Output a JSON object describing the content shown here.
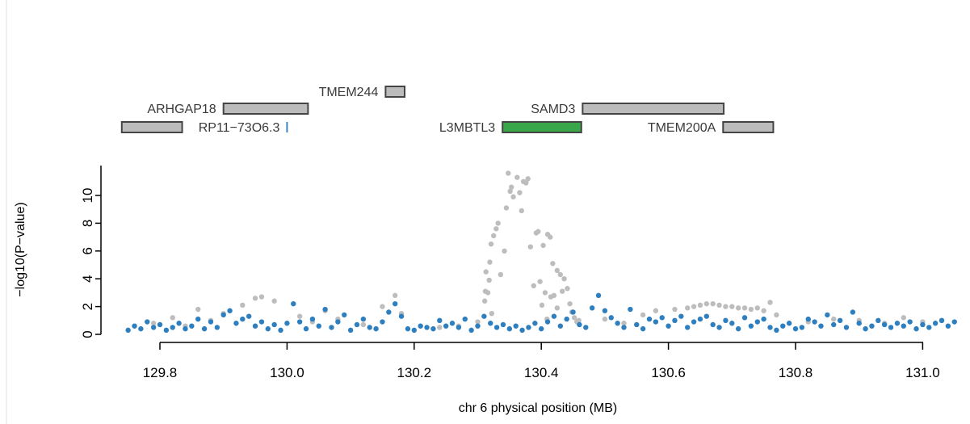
{
  "chart_data": {
    "type": "scatter",
    "title": "",
    "xlabel": "chr 6 physical position (MB)",
    "ylabel": "−log10(P−value)",
    "xlim": [
      129.74,
      131.06
    ],
    "ylim": [
      0,
      12
    ],
    "x_ticks": [
      "129.8",
      "130.0",
      "130.2",
      "130.4",
      "130.6",
      "130.8",
      "131.0"
    ],
    "y_ticks": [
      "0",
      "2",
      "4",
      "6",
      "8",
      "10"
    ],
    "colors": {
      "highlight": "#2e7fbf",
      "other": "#bdbdbd",
      "focus_gene": "#3aa64a",
      "focus_gene_text": "#2e9a43",
      "lnc_gene": "#3a86c4",
      "gene_fill": "#bcbcbc"
    },
    "genes": [
      {
        "name": "",
        "start": 129.74,
        "end": 129.835,
        "row": 2,
        "color": "gray"
      },
      {
        "name": "TMEM244",
        "start": 130.155,
        "end": 130.185,
        "row": 0,
        "color": "gray"
      },
      {
        "name": "ARHGAP18",
        "start": 129.9,
        "end": 130.033,
        "row": 1,
        "color": "gray"
      },
      {
        "name": "RP11−73O6.3",
        "start": 130.0,
        "end": 130.0,
        "row": 2,
        "color": "blue"
      },
      {
        "name": "L3MBTL3",
        "start": 130.339,
        "end": 130.463,
        "row": 2,
        "color": "green"
      },
      {
        "name": "SAMD3",
        "start": 130.465,
        "end": 130.687,
        "row": 1,
        "color": "gray"
      },
      {
        "name": "TMEM200A",
        "start": 130.686,
        "end": 130.765,
        "row": 2,
        "color": "gray"
      }
    ],
    "peak_points": {
      "x": [
        130.311,
        130.313,
        130.316,
        130.319,
        130.321,
        130.325,
        130.329,
        130.332,
        130.336,
        130.342,
        130.345,
        130.348,
        130.351,
        130.353,
        130.356,
        130.362,
        130.366,
        130.369,
        130.372,
        130.376,
        130.379,
        130.383,
        130.388,
        130.392,
        130.395,
        130.398,
        130.403,
        130.406,
        130.41,
        130.414,
        130.418,
        130.42,
        130.425,
        130.43,
        130.433,
        130.436,
        130.441,
        130.445,
        130.448,
        130.452,
        130.456,
        130.459,
        130.312,
        130.318,
        130.322,
        130.401,
        130.409,
        130.415,
        130.425
      ],
      "y": [
        2.4,
        4.5,
        3.0,
        5.2,
        6.5,
        7.1,
        7.6,
        8.0,
        4.3,
        6.0,
        9.1,
        11.6,
        10.3,
        10.6,
        9.9,
        11.3,
        10.2,
        8.9,
        11.0,
        10.9,
        11.2,
        6.3,
        3.5,
        7.3,
        7.4,
        3.8,
        6.4,
        3.0,
        7.2,
        7.0,
        5.1,
        2.8,
        4.6,
        4.3,
        3.1,
        4.0,
        3.3,
        2.2,
        1.6,
        1.2,
        0.9,
        1.0,
        3.1,
        3.9,
        1.5,
        2.1,
        1.1,
        2.7,
        1.9
      ]
    },
    "gray_points": {
      "x": [
        129.79,
        129.82,
        129.84,
        129.86,
        129.88,
        129.9,
        129.93,
        129.95,
        129.96,
        129.98,
        130.02,
        130.04,
        130.06,
        130.08,
        130.12,
        130.15,
        130.17,
        130.18,
        130.24,
        130.27,
        130.3,
        130.5,
        130.53,
        130.56,
        130.58,
        130.61,
        130.63,
        130.64,
        130.65,
        130.66,
        130.67,
        130.68,
        130.69,
        130.7,
        130.71,
        130.72,
        130.73,
        130.74,
        130.75,
        130.76,
        130.77,
        130.82,
        130.86,
        130.9,
        130.94,
        130.97,
        131.0,
        131.03
      ],
      "y": [
        0.8,
        1.2,
        0.6,
        1.8,
        1.0,
        1.5,
        2.1,
        2.6,
        2.7,
        2.4,
        1.3,
        0.9,
        1.7,
        1.1,
        0.7,
        2.0,
        2.8,
        1.5,
        0.5,
        0.6,
        0.9,
        1.1,
        0.8,
        1.4,
        1.7,
        1.8,
        1.9,
        2.0,
        2.1,
        2.2,
        2.2,
        2.1,
        2.0,
        2.0,
        1.9,
        1.9,
        1.8,
        1.9,
        1.7,
        2.3,
        1.4,
        0.9,
        1.1,
        1.0,
        0.8,
        1.2,
        0.9,
        1.0
      ]
    },
    "blue_points": {
      "x": [
        129.75,
        129.76,
        129.77,
        129.78,
        129.79,
        129.8,
        129.81,
        129.82,
        129.83,
        129.84,
        129.85,
        129.86,
        129.87,
        129.88,
        129.89,
        129.9,
        129.91,
        129.92,
        129.93,
        129.94,
        129.95,
        129.96,
        129.97,
        129.98,
        129.99,
        130.0,
        130.01,
        130.02,
        130.03,
        130.04,
        130.05,
        130.06,
        130.07,
        130.08,
        130.09,
        130.1,
        130.11,
        130.12,
        130.13,
        130.14,
        130.15,
        130.16,
        130.17,
        130.18,
        130.19,
        130.2,
        130.21,
        130.22,
        130.23,
        130.24,
        130.25,
        130.26,
        130.27,
        130.28,
        130.29,
        130.3,
        130.31,
        130.32,
        130.33,
        130.34,
        130.35,
        130.36,
        130.37,
        130.38,
        130.39,
        130.4,
        130.41,
        130.42,
        130.43,
        130.44,
        130.45,
        130.46,
        130.47,
        130.48,
        130.49,
        130.5,
        130.51,
        130.52,
        130.53,
        130.54,
        130.55,
        130.56,
        130.57,
        130.58,
        130.59,
        130.6,
        130.61,
        130.62,
        130.63,
        130.64,
        130.65,
        130.66,
        130.67,
        130.68,
        130.69,
        130.7,
        130.71,
        130.72,
        130.73,
        130.74,
        130.75,
        130.76,
        130.77,
        130.78,
        130.79,
        130.8,
        130.81,
        130.82,
        130.83,
        130.84,
        130.85,
        130.86,
        130.87,
        130.88,
        130.89,
        130.9,
        130.91,
        130.92,
        130.93,
        130.94,
        130.95,
        130.96,
        130.97,
        130.98,
        130.99,
        131.0,
        131.01,
        131.02,
        131.03,
        131.04,
        131.05
      ],
      "y": [
        0.3,
        0.6,
        0.4,
        0.9,
        0.5,
        0.7,
        0.3,
        0.5,
        0.8,
        0.4,
        0.6,
        1.1,
        0.4,
        0.9,
        0.5,
        1.4,
        1.7,
        0.8,
        1.1,
        1.3,
        0.6,
        0.9,
        0.4,
        0.7,
        0.3,
        0.8,
        2.2,
        0.9,
        0.4,
        1.1,
        0.6,
        1.8,
        0.5,
        0.9,
        1.4,
        0.3,
        0.7,
        1.1,
        0.5,
        0.4,
        0.9,
        1.6,
        2.2,
        1.3,
        0.4,
        0.3,
        0.6,
        0.5,
        0.4,
        1.0,
        0.6,
        0.8,
        0.5,
        1.1,
        0.3,
        0.6,
        1.3,
        0.8,
        0.5,
        0.7,
        0.4,
        0.6,
        0.3,
        0.5,
        0.8,
        0.4,
        0.9,
        1.3,
        0.6,
        1.1,
        1.6,
        0.7,
        0.5,
        1.9,
        2.8,
        1.7,
        1.2,
        0.8,
        0.5,
        1.8,
        0.7,
        0.4,
        1.1,
        0.9,
        1.2,
        0.6,
        1.0,
        1.3,
        0.5,
        0.9,
        1.1,
        1.3,
        0.7,
        0.5,
        1.0,
        0.8,
        0.4,
        1.2,
        0.6,
        0.9,
        1.1,
        0.5,
        0.3,
        0.6,
        0.8,
        0.4,
        0.5,
        1.1,
        0.9,
        0.6,
        1.4,
        0.7,
        1.0,
        0.5,
        1.6,
        0.8,
        0.4,
        0.6,
        1.0,
        0.7,
        0.5,
        0.8,
        0.6,
        0.9,
        0.4,
        0.7,
        0.5,
        0.8,
        1.0,
        0.6,
        0.9
      ]
    }
  }
}
